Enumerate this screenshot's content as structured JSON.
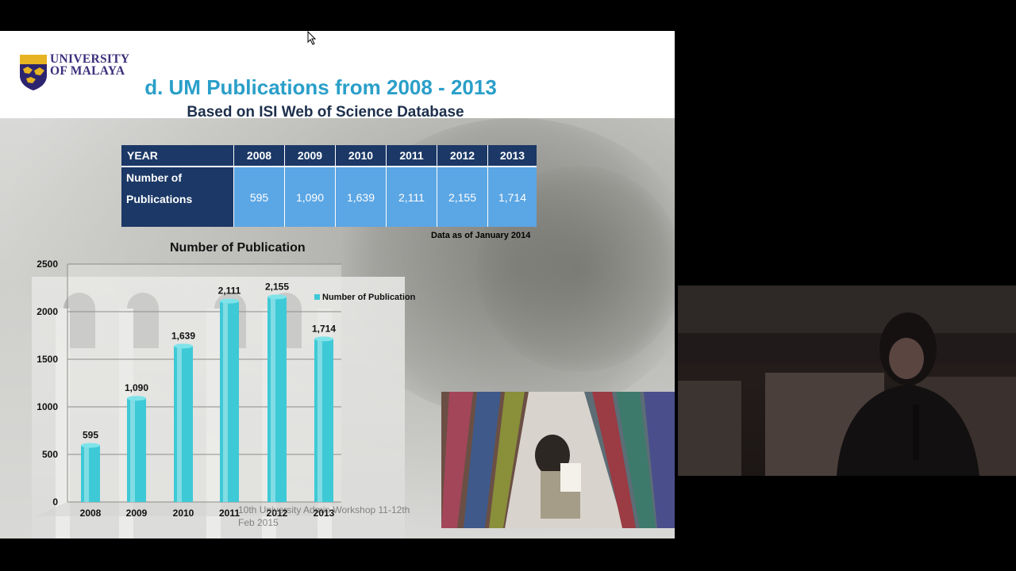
{
  "slide": {
    "logo_lines": [
      "UNIVERSITY",
      "OF MALAYA"
    ],
    "title": "d. UM Publications from 2008 - 2013",
    "subtitle": "Based on ISI Web of Science Database",
    "table": {
      "header_label": "YEAR",
      "row_label_lines": [
        "Number of",
        "Publications"
      ],
      "columns": [
        {
          "year": "2008",
          "value": "595"
        },
        {
          "year": "2009",
          "value": "1,090"
        },
        {
          "year": "2010",
          "value": "1,639"
        },
        {
          "year": "2011",
          "value": "2,111"
        },
        {
          "year": "2012",
          "value": "2,155"
        },
        {
          "year": "2013",
          "value": "1,714"
        }
      ]
    },
    "data_note": "Data as of January 2014",
    "footer_lines": [
      "10th University Admin Workshop 11-12th",
      "Feb 2015"
    ]
  },
  "chart_data": {
    "type": "bar",
    "title": "Number of Publication",
    "categories": [
      "2008",
      "2009",
      "2010",
      "2011",
      "2012",
      "2013"
    ],
    "series": [
      {
        "name": "Number of Publication",
        "values": [
          595,
          1090,
          1639,
          2111,
          2155,
          1714
        ]
      }
    ],
    "data_labels": [
      "595",
      "1,090",
      "1,639",
      "2,111",
      "2,155",
      "1,714"
    ],
    "ylim": [
      0,
      2500
    ],
    "yticks": [
      0,
      500,
      1000,
      1500,
      2000,
      2500
    ],
    "grid": true,
    "legend": "right",
    "color": "#3ec9d6"
  },
  "colors": {
    "title": "#2a9fc9",
    "table_header": "#1b3866",
    "table_cell": "#5ba6e4",
    "bar": "#3ec9d6"
  }
}
